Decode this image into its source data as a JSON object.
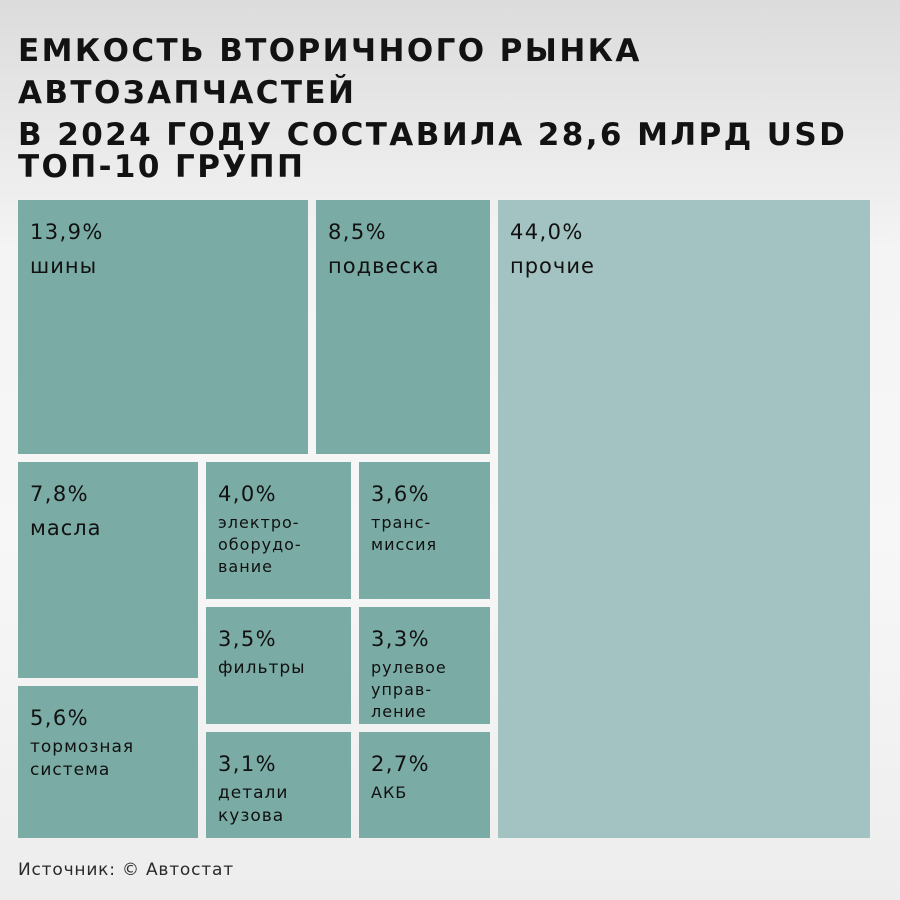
{
  "header": {
    "title_line1": "ЕМКОСТЬ ВТОРИЧНОГО РЫНКА АВТОЗАПЧАСТЕЙ",
    "title_line2": "В 2024 ГОДУ СОСТАВИЛА 28,6 МЛРД USD",
    "subtitle": "ТОП-10 ГРУПП"
  },
  "chart_data": {
    "type": "treemap",
    "title": "ЕМКОСТЬ ВТОРИЧНОГО РЫНКА АВТОЗАПЧАСТЕЙ В 2024 ГОДУ СОСТАВИЛА 28,6 МЛРД USD",
    "subtitle": "ТОП-10 ГРУПП",
    "unit": "%",
    "items": [
      {
        "key": "tires",
        "value": 13.9,
        "value_label": "13,9%",
        "label": "шины"
      },
      {
        "key": "suspension",
        "value": 8.5,
        "value_label": "8,5%",
        "label": "подвеска"
      },
      {
        "key": "other",
        "value": 44.0,
        "value_label": "44,0%",
        "label": "прочие"
      },
      {
        "key": "oils",
        "value": 7.8,
        "value_label": "7,8%",
        "label": "масла"
      },
      {
        "key": "electrical",
        "value": 4.0,
        "value_label": "4,0%",
        "label": "электро-\nоборудо-\nвание"
      },
      {
        "key": "transmission",
        "value": 3.6,
        "value_label": "3,6%",
        "label": "транс-\nмиссия"
      },
      {
        "key": "brakes",
        "value": 5.6,
        "value_label": "5,6%",
        "label": "тормозная\nсистема"
      },
      {
        "key": "filters",
        "value": 3.5,
        "value_label": "3,5%",
        "label": "фильтры"
      },
      {
        "key": "steering",
        "value": 3.3,
        "value_label": "3,3%",
        "label": "рулевое\nуправ-\nление"
      },
      {
        "key": "body",
        "value": 3.1,
        "value_label": "3,1%",
        "label": "детали\nкузова"
      },
      {
        "key": "battery",
        "value": 2.7,
        "value_label": "2,7%",
        "label": "АКБ"
      }
    ]
  },
  "footer": {
    "source": "Источник:  © Автостат"
  },
  "colors": {
    "cell": "#7aaba5",
    "other_cell": "#a2c3c1"
  }
}
